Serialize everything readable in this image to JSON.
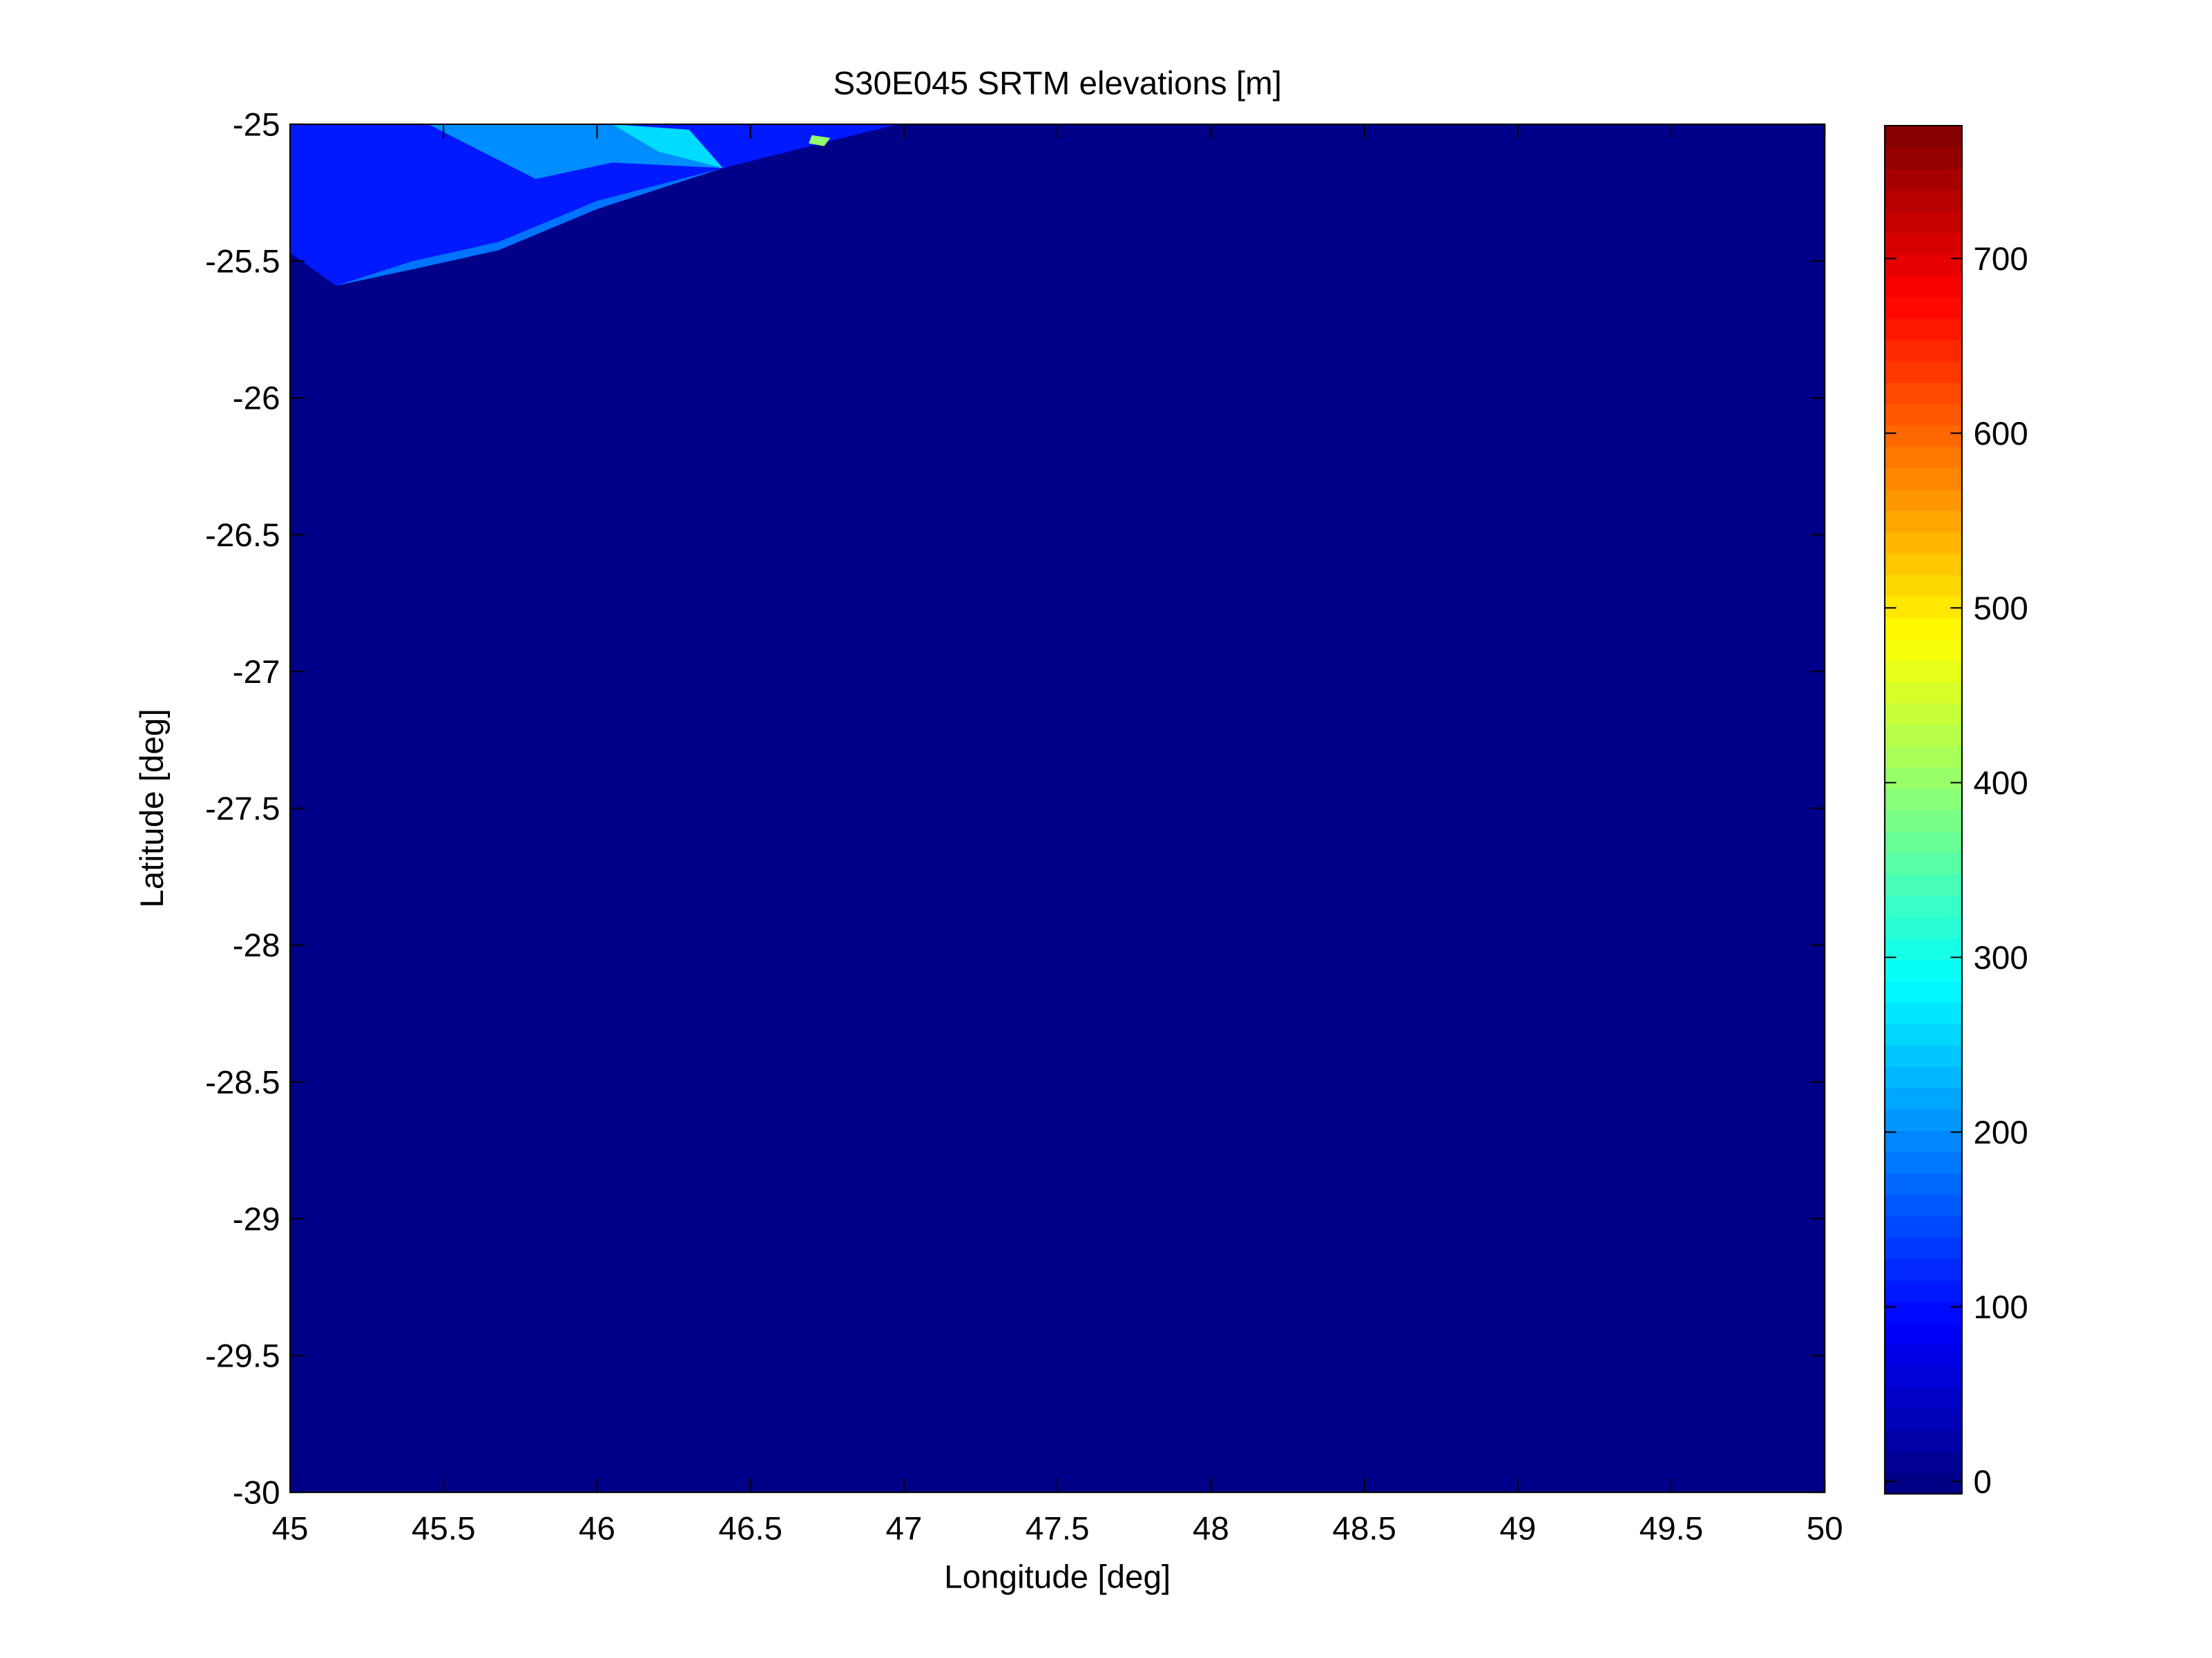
{
  "chart_data": {
    "type": "elevation-map",
    "title": "S30E045 SRTM elevations [m]",
    "x_label": "Longitude [deg]",
    "y_label": "Latitude [deg]",
    "xlim": [
      45,
      50
    ],
    "ylim": [
      -30,
      -25
    ],
    "xticks": [
      45,
      45.5,
      46,
      46.5,
      47,
      47.5,
      48,
      48.5,
      49,
      49.5,
      50
    ],
    "yticks": [
      -30,
      -29.5,
      -29,
      -28.5,
      -28,
      -27.5,
      -27,
      -26.5,
      -26,
      -25.5,
      -25
    ],
    "colormap": "jet",
    "clim": [
      -7,
      776
    ],
    "colorbar_ticks": [
      0,
      100,
      200,
      300,
      400,
      500,
      600,
      700
    ],
    "background_value": 0,
    "regions": [
      {
        "value": 110,
        "points": [
          [
            45,
            -25
          ],
          [
            46.98,
            -25
          ],
          [
            46.8,
            -25.05
          ],
          [
            46.41,
            -25.16
          ],
          [
            46.0,
            -25.3
          ],
          [
            45.68,
            -25.46
          ],
          [
            45.4,
            -25.52
          ],
          [
            45.15,
            -25.59
          ],
          [
            45,
            -25.47
          ]
        ]
      },
      {
        "value": 200,
        "points": [
          [
            45.45,
            -25
          ],
          [
            46.05,
            -25
          ],
          [
            46.41,
            -25.16
          ],
          [
            46.05,
            -25.14
          ],
          [
            45.8,
            -25.2
          ]
        ]
      },
      {
        "value": 260,
        "points": [
          [
            46.05,
            -25
          ],
          [
            46.3,
            -25.02
          ],
          [
            46.41,
            -25.16
          ],
          [
            46.2,
            -25.1
          ]
        ]
      },
      {
        "value": 180,
        "points": [
          [
            46.41,
            -25.16
          ],
          [
            46.0,
            -25.31
          ],
          [
            45.68,
            -25.46
          ],
          [
            45.4,
            -25.53
          ],
          [
            45.15,
            -25.59
          ],
          [
            45.4,
            -25.5
          ],
          [
            45.68,
            -25.43
          ],
          [
            46.0,
            -25.28
          ]
        ]
      },
      {
        "value": 400,
        "points": [
          [
            46.7,
            -25.04
          ],
          [
            46.76,
            -25.05
          ],
          [
            46.74,
            -25.08
          ],
          [
            46.69,
            -25.07
          ]
        ]
      }
    ]
  }
}
